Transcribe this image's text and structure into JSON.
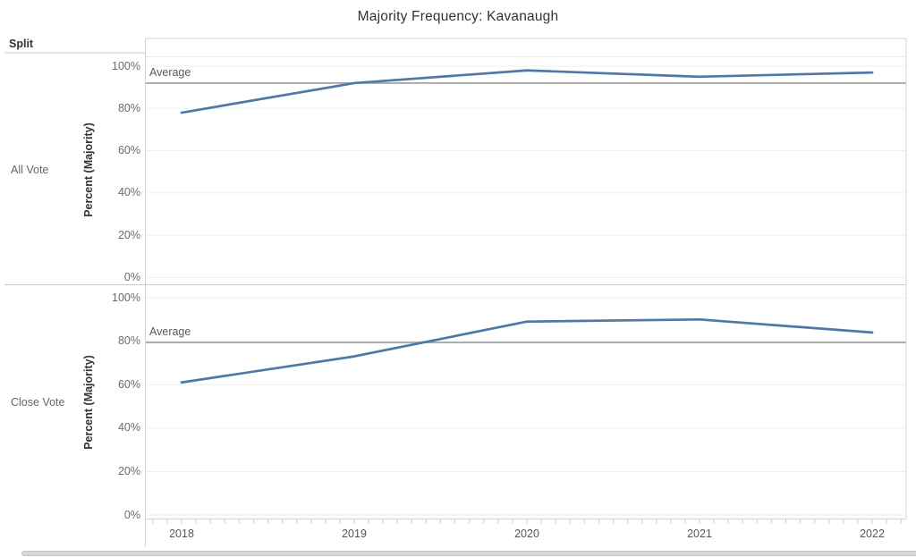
{
  "chart_data": {
    "type": "line",
    "title": "Majority Frequency: Kavanaugh",
    "facet_field": "Split",
    "x": [
      2018,
      2019,
      2020,
      2021,
      2022
    ],
    "x_labels": [
      "2018",
      "2019",
      "2020",
      "2021",
      "2022"
    ],
    "xlabel": "",
    "ylabel": "Percent (Majority)",
    "ylim": [
      0,
      100
    ],
    "yticks": [
      0,
      20,
      40,
      60,
      80,
      100
    ],
    "ytick_labels": [
      "0%",
      "20%",
      "40%",
      "60%",
      "80%",
      "100%"
    ],
    "grid": true,
    "legend_position": "none",
    "line_color": "#4e79a7",
    "reference_line": {
      "label": "Average",
      "color": "#9c9c9c"
    },
    "panels": [
      {
        "split": "All Vote",
        "values": [
          78,
          92,
          98,
          95,
          97
        ],
        "average": 92.0
      },
      {
        "split": "Close Vote",
        "values": [
          61,
          73,
          89,
          90,
          84
        ],
        "average": 79.4
      }
    ]
  }
}
